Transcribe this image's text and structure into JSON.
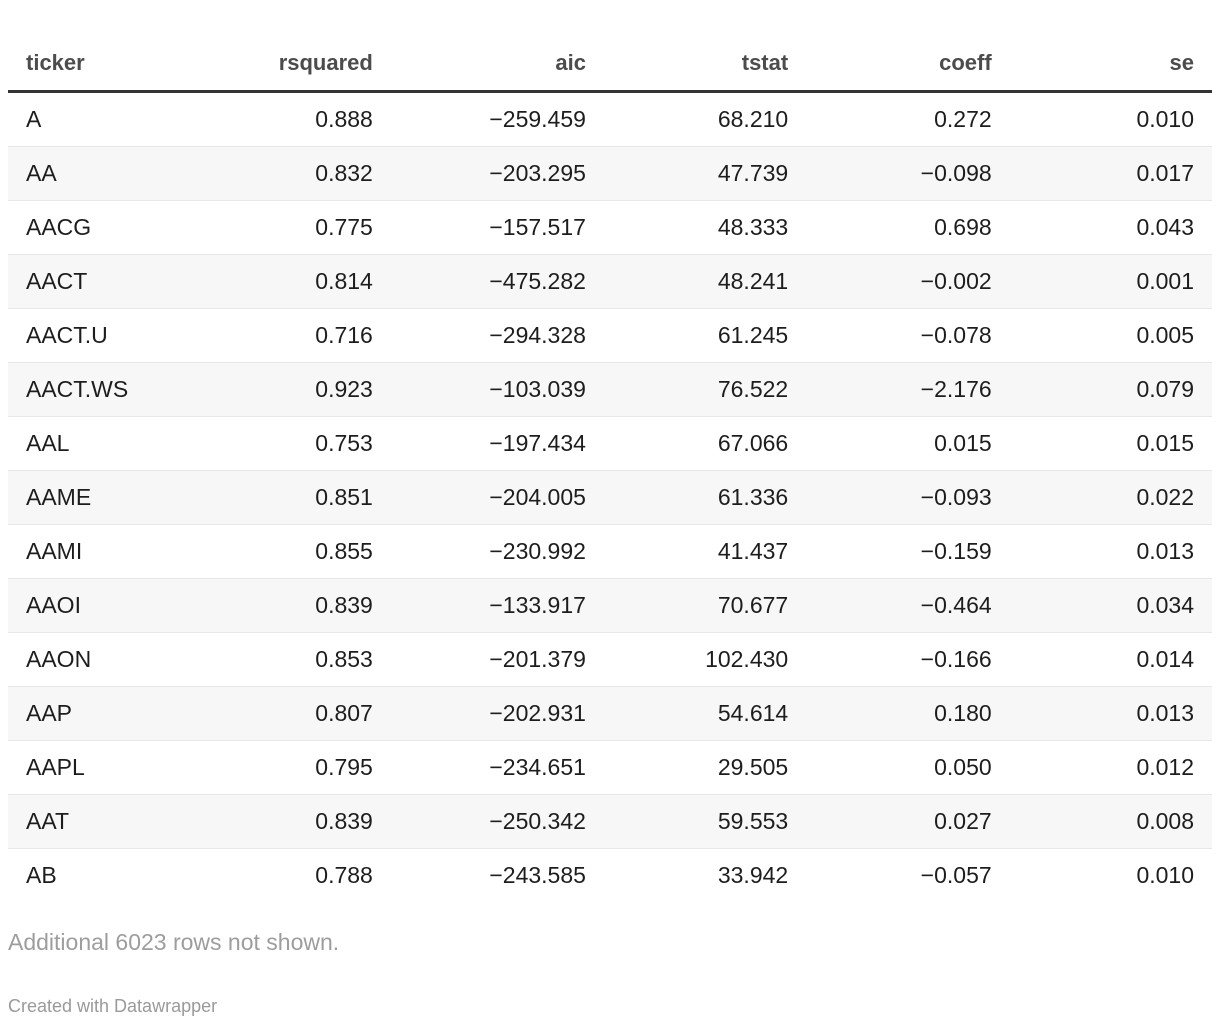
{
  "table": {
    "columns": [
      {
        "key": "ticker",
        "label": "ticker",
        "align": "left"
      },
      {
        "key": "rsquared",
        "label": "rsquared",
        "align": "right"
      },
      {
        "key": "aic",
        "label": "aic",
        "align": "right"
      },
      {
        "key": "tstat",
        "label": "tstat",
        "align": "right"
      },
      {
        "key": "coeff",
        "label": "coeff",
        "align": "right"
      },
      {
        "key": "se",
        "label": "se",
        "align": "right"
      }
    ],
    "rows": [
      [
        "A",
        "0.888",
        "−259.459",
        "68.210",
        "0.272",
        "0.010"
      ],
      [
        "AA",
        "0.832",
        "−203.295",
        "47.739",
        "−0.098",
        "0.017"
      ],
      [
        "AACG",
        "0.775",
        "−157.517",
        "48.333",
        "0.698",
        "0.043"
      ],
      [
        "AACT",
        "0.814",
        "−475.282",
        "48.241",
        "−0.002",
        "0.001"
      ],
      [
        "AACT.U",
        "0.716",
        "−294.328",
        "61.245",
        "−0.078",
        "0.005"
      ],
      [
        "AACT.WS",
        "0.923",
        "−103.039",
        "76.522",
        "−2.176",
        "0.079"
      ],
      [
        "AAL",
        "0.753",
        "−197.434",
        "67.066",
        "0.015",
        "0.015"
      ],
      [
        "AAME",
        "0.851",
        "−204.005",
        "61.336",
        "−0.093",
        "0.022"
      ],
      [
        "AAMI",
        "0.855",
        "−230.992",
        "41.437",
        "−0.159",
        "0.013"
      ],
      [
        "AAOI",
        "0.839",
        "−133.917",
        "70.677",
        "−0.464",
        "0.034"
      ],
      [
        "AAON",
        "0.853",
        "−201.379",
        "102.430",
        "−0.166",
        "0.014"
      ],
      [
        "AAP",
        "0.807",
        "−202.931",
        "54.614",
        "0.180",
        "0.013"
      ],
      [
        "AAPL",
        "0.795",
        "−234.651",
        "29.505",
        "0.050",
        "0.012"
      ],
      [
        "AAT",
        "0.839",
        "−250.342",
        "59.553",
        "0.027",
        "0.008"
      ],
      [
        "AB",
        "0.788",
        "−243.585",
        "33.942",
        "−0.057",
        "0.010"
      ]
    ]
  },
  "footer": {
    "note": "Additional 6023 rows not shown.",
    "credit": "Created with Datawrapper"
  },
  "colors": {
    "header_text": "#4c4c4c",
    "body_text": "#1d1d1d",
    "header_rule": "#333333",
    "zebra_stripe": "#f7f7f7",
    "row_divider": "#e8e8e8",
    "footer_text": "#9d9d9d"
  },
  "chart_data": {
    "type": "table",
    "columns": [
      "ticker",
      "rsquared",
      "aic",
      "tstat",
      "coeff",
      "se"
    ],
    "rows": [
      [
        "A",
        0.888,
        -259.459,
        68.21,
        0.272,
        0.01
      ],
      [
        "AA",
        0.832,
        -203.295,
        47.739,
        -0.098,
        0.017
      ],
      [
        "AACG",
        0.775,
        -157.517,
        48.333,
        0.698,
        0.043
      ],
      [
        "AACT",
        0.814,
        -475.282,
        48.241,
        -0.002,
        0.001
      ],
      [
        "AACT.U",
        0.716,
        -294.328,
        61.245,
        -0.078,
        0.005
      ],
      [
        "AACT.WS",
        0.923,
        -103.039,
        76.522,
        -2.176,
        0.079
      ],
      [
        "AAL",
        0.753,
        -197.434,
        67.066,
        0.015,
        0.015
      ],
      [
        "AAME",
        0.851,
        -204.005,
        61.336,
        -0.093,
        0.022
      ],
      [
        "AAMI",
        0.855,
        -230.992,
        41.437,
        -0.159,
        0.013
      ],
      [
        "AAOI",
        0.839,
        -133.917,
        70.677,
        -0.464,
        0.034
      ],
      [
        "AAON",
        0.853,
        -201.379,
        102.43,
        -0.166,
        0.014
      ],
      [
        "AAP",
        0.807,
        -202.931,
        54.614,
        0.18,
        0.013
      ],
      [
        "AAPL",
        0.795,
        -234.651,
        29.505,
        0.05,
        0.012
      ],
      [
        "AAT",
        0.839,
        -250.342,
        59.553,
        0.027,
        0.008
      ],
      [
        "AB",
        0.788,
        -243.585,
        33.942,
        -0.057,
        0.01
      ]
    ],
    "title": "",
    "note": "Additional 6023 rows not shown.",
    "credit": "Created with Datawrapper",
    "zebra_striping": true,
    "numeric_alignment": "right"
  }
}
